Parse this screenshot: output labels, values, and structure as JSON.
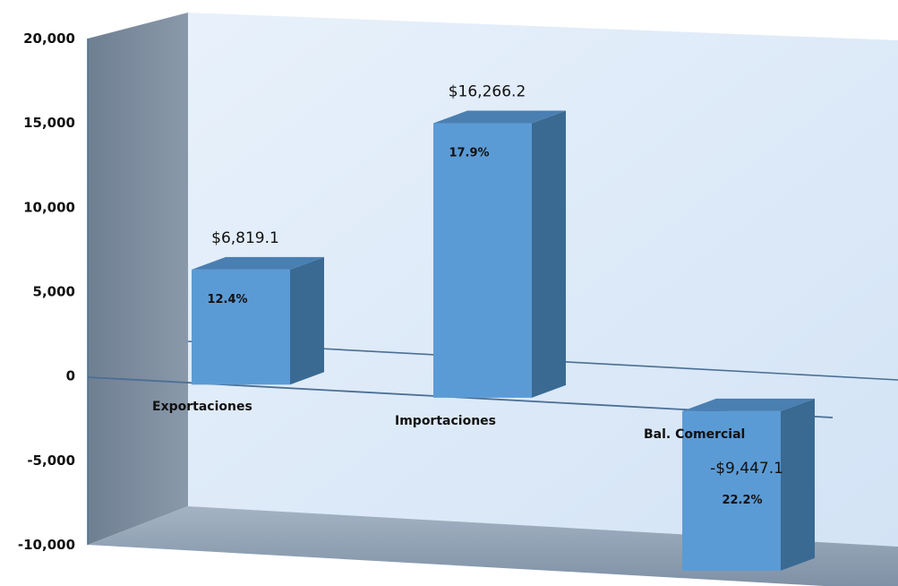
{
  "chart_data": {
    "type": "bar",
    "categories": [
      "Exportaciones",
      "Importaciones",
      "Bal. Comercial"
    ],
    "values": [
      6819.1,
      16266.2,
      -9447.1
    ],
    "value_labels": [
      "$6,819.1",
      "$16,266.2",
      "-$9,447.1"
    ],
    "percent_labels": [
      "12.4%",
      "17.9%",
      "22.2%"
    ],
    "ylim": [
      -10000,
      20000
    ],
    "y_ticks": [
      "20,000",
      "15,000",
      "10,000",
      "5,000",
      "0",
      "-5,000",
      "-10,000"
    ],
    "y_tick_values": [
      20000,
      15000,
      10000,
      5000,
      0,
      -5000,
      -10000
    ],
    "three_d": true,
    "grid": false,
    "colors": {
      "bar_front": "#5b9bd5",
      "bar_side": "#3a6a92",
      "bar_top": "#4a7fb2",
      "back_wall": "#dbe8f7",
      "side_wall": "#7a8a9c",
      "floor": "#8fa1b4",
      "zero_line": "#4a6f94"
    }
  }
}
